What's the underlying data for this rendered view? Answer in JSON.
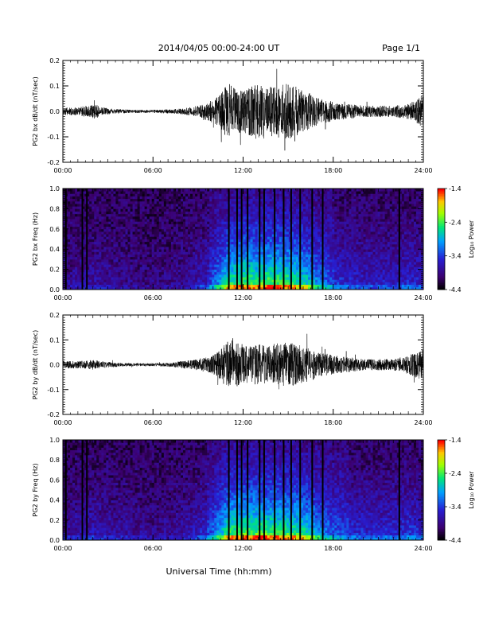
{
  "header": {
    "title": "2014/04/05  00:00-24:00 UT",
    "page": "Page 1/1"
  },
  "footer": {
    "xlabel": "Universal Time (hh:mm)"
  },
  "chart_data": [
    {
      "type": "line",
      "ylabel": "PG2 bx dB/dt (nT/sec)",
      "xlim": [
        0,
        24
      ],
      "ylim": [
        -0.2,
        0.2
      ],
      "yticks": [
        "-0.2",
        "-0.1",
        "0.0",
        "0.1",
        "0.2"
      ],
      "xticks": [
        "00:00",
        "06:00",
        "12:00",
        "18:00",
        "24:00"
      ],
      "envelope_hours": [
        0,
        1,
        2,
        3,
        4,
        5,
        6,
        7,
        8,
        9,
        10,
        10.5,
        11,
        11.5,
        12,
        12.5,
        13,
        13.5,
        14,
        14.5,
        15,
        15.5,
        16,
        17,
        18,
        19,
        20,
        21,
        22,
        23,
        23.5,
        24
      ],
      "envelope_amplitude": [
        0.02,
        0.02,
        0.04,
        0.015,
        0.01,
        0.008,
        0.008,
        0.01,
        0.015,
        0.03,
        0.06,
        0.09,
        0.15,
        0.12,
        0.11,
        0.13,
        0.15,
        0.14,
        0.13,
        0.14,
        0.15,
        0.13,
        0.11,
        0.07,
        0.05,
        0.04,
        0.03,
        0.03,
        0.03,
        0.04,
        0.06,
        0.09
      ]
    },
    {
      "type": "heatmap",
      "ylabel": "PG2 bx Freq (Hz)",
      "xlim": [
        0,
        24
      ],
      "ylim": [
        0.0,
        1.0
      ],
      "yticks": [
        "0.0",
        "0.2",
        "0.4",
        "0.6",
        "0.8",
        "1.0"
      ],
      "xticks": [
        "00:00",
        "06:00",
        "12:00",
        "18:00",
        "24:00"
      ],
      "colorbar": {
        "label": "Log₁₀ Power",
        "range": [
          -4.4,
          -1.4
        ],
        "ticks": [
          "-1.4",
          "-2.4",
          "-3.4",
          "-4.4"
        ]
      },
      "activity_hours": [
        0,
        2,
        4,
        6,
        8,
        9.5,
        10.5,
        11,
        11.5,
        12,
        13,
        14,
        15,
        16,
        17,
        18,
        20,
        22,
        23,
        24
      ],
      "activity_level": [
        0.15,
        0.2,
        0.15,
        0.1,
        0.15,
        0.3,
        0.6,
        0.85,
        0.9,
        0.95,
        0.9,
        0.95,
        0.9,
        0.8,
        0.55,
        0.4,
        0.3,
        0.3,
        0.35,
        0.3
      ],
      "dropout_hours": [
        0.2,
        1.3,
        1.6,
        11.05,
        11.6,
        11.9,
        12.3,
        13.1,
        13.4,
        14.1,
        14.7,
        15.2,
        15.8,
        16.6,
        17.3,
        22.4
      ]
    },
    {
      "type": "line",
      "ylabel": "PG2 by dB/dt (nT/sec)",
      "xlim": [
        0,
        24
      ],
      "ylim": [
        -0.2,
        0.2
      ],
      "yticks": [
        "-0.2",
        "-0.1",
        "0.0",
        "0.1",
        "0.2"
      ],
      "xticks": [
        "00:00",
        "06:00",
        "12:00",
        "18:00",
        "24:00"
      ],
      "envelope_hours": [
        0,
        1,
        2,
        3,
        4,
        5,
        6,
        7,
        8,
        9,
        10,
        10.5,
        11,
        11.5,
        12,
        12.5,
        13,
        13.5,
        14,
        14.5,
        15,
        15.5,
        16,
        17,
        18,
        19,
        20,
        21,
        22,
        23,
        23.5,
        24
      ],
      "envelope_amplitude": [
        0.02,
        0.02,
        0.025,
        0.015,
        0.01,
        0.008,
        0.008,
        0.01,
        0.02,
        0.03,
        0.05,
        0.08,
        0.14,
        0.12,
        0.1,
        0.1,
        0.11,
        0.1,
        0.11,
        0.12,
        0.12,
        0.11,
        0.1,
        0.07,
        0.05,
        0.04,
        0.03,
        0.03,
        0.03,
        0.05,
        0.07,
        0.08
      ]
    },
    {
      "type": "heatmap",
      "ylabel": "PG2 by Freq (Hz)",
      "xlim": [
        0,
        24
      ],
      "ylim": [
        0.0,
        1.0
      ],
      "yticks": [
        "0.0",
        "0.2",
        "0.4",
        "0.6",
        "0.8",
        "1.0"
      ],
      "xticks": [
        "00:00",
        "06:00",
        "12:00",
        "18:00",
        "24:00"
      ],
      "colorbar": {
        "label": "Log₁₀ Power",
        "range": [
          -4.4,
          -1.4
        ],
        "ticks": [
          "-1.4",
          "-2.4",
          "-3.4",
          "-4.4"
        ]
      },
      "activity_hours": [
        0,
        2,
        4,
        6,
        8,
        9.5,
        10.5,
        11,
        11.5,
        12,
        13,
        14,
        15,
        16,
        17,
        18,
        20,
        22,
        23,
        24
      ],
      "activity_level": [
        0.2,
        0.25,
        0.2,
        0.15,
        0.2,
        0.35,
        0.65,
        0.9,
        0.95,
        0.95,
        0.95,
        0.95,
        0.9,
        0.85,
        0.6,
        0.45,
        0.35,
        0.35,
        0.4,
        0.35
      ],
      "dropout_hours": [
        0.2,
        1.3,
        1.6,
        11.05,
        11.6,
        11.9,
        12.3,
        13.1,
        13.4,
        14.1,
        14.7,
        15.2,
        15.8,
        16.6,
        17.3,
        22.4
      ]
    }
  ]
}
